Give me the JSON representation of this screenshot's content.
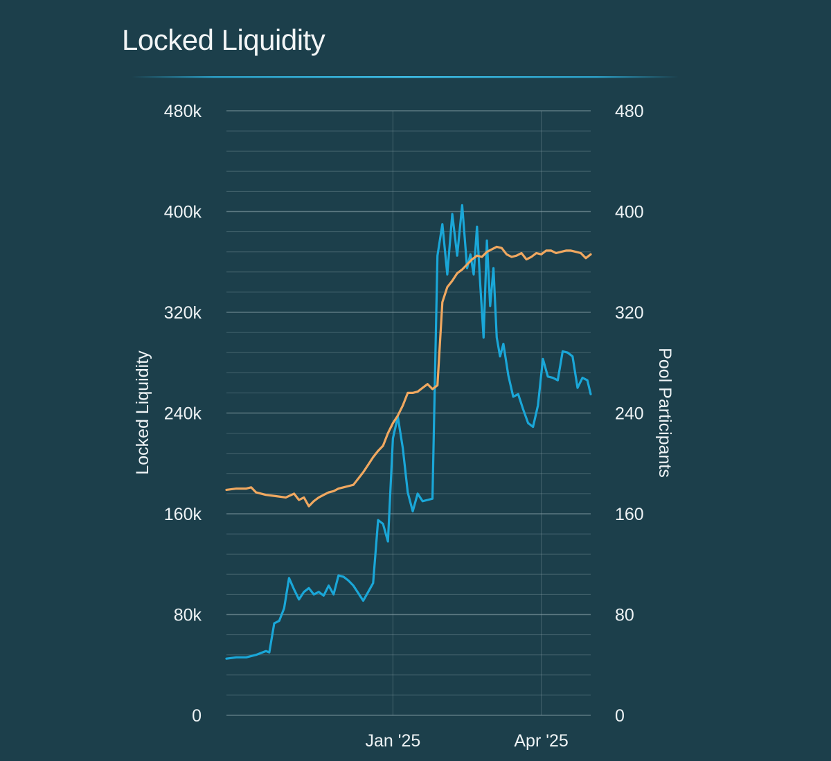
{
  "chart_data": {
    "type": "line",
    "title": "Locked Liquidity",
    "ylabel": "Locked Liquidity",
    "y2label": "Pool Participants",
    "xlim": [
      "2024-09-22",
      "2025-05-01"
    ],
    "ylim": [
      0,
      480000
    ],
    "y2lim": [
      0,
      480
    ],
    "y_ticks": [
      0,
      80000,
      160000,
      240000,
      320000,
      400000,
      480000
    ],
    "y_tick_labels": [
      "0",
      "80k",
      "160k",
      "240k",
      "320k",
      "400k",
      "480k"
    ],
    "y2_ticks": [
      0,
      80,
      160,
      240,
      320,
      400,
      480
    ],
    "y2_tick_labels": [
      "0",
      "80",
      "160",
      "240",
      "320",
      "400",
      "480"
    ],
    "x_ticks": [
      {
        "label": "Jan '25",
        "date": "2025-01-01"
      },
      {
        "label": "Apr '25",
        "date": "2025-04-01"
      }
    ],
    "grid": true,
    "series": [
      {
        "name": "Locked Liquidity",
        "axis": "left",
        "color": "#1aa7d8",
        "x": [
          "2024-09-22",
          "2024-09-28",
          "2024-10-04",
          "2024-10-10",
          "2024-10-16",
          "2024-10-18",
          "2024-10-21",
          "2024-10-24",
          "2024-10-27",
          "2024-10-30",
          "2024-11-02",
          "2024-11-05",
          "2024-11-08",
          "2024-11-11",
          "2024-11-14",
          "2024-11-17",
          "2024-11-20",
          "2024-11-23",
          "2024-11-26",
          "2024-11-29",
          "2024-12-02",
          "2024-12-05",
          "2024-12-08",
          "2024-12-11",
          "2024-12-14",
          "2024-12-17",
          "2024-12-20",
          "2024-12-23",
          "2024-12-26",
          "2024-12-29",
          "2025-01-01",
          "2025-01-04",
          "2025-01-07",
          "2025-01-10",
          "2025-01-13",
          "2025-01-16",
          "2025-01-19",
          "2025-01-22",
          "2025-01-25",
          "2025-01-28",
          "2025-01-31",
          "2025-02-03",
          "2025-02-06",
          "2025-02-09",
          "2025-02-12",
          "2025-02-15",
          "2025-02-17",
          "2025-02-19",
          "2025-02-21",
          "2025-02-23",
          "2025-02-25",
          "2025-02-27",
          "2025-03-01",
          "2025-03-03",
          "2025-03-05",
          "2025-03-07",
          "2025-03-09",
          "2025-03-12",
          "2025-03-15",
          "2025-03-18",
          "2025-03-21",
          "2025-03-24",
          "2025-03-27",
          "2025-03-30",
          "2025-04-02",
          "2025-04-05",
          "2025-04-08",
          "2025-04-11",
          "2025-04-14",
          "2025-04-17",
          "2025-04-20",
          "2025-04-23",
          "2025-04-26",
          "2025-04-29",
          "2025-05-01"
        ],
        "values": [
          45000,
          46000,
          46000,
          48000,
          51000,
          50000,
          73000,
          75000,
          85000,
          109000,
          100000,
          92000,
          98000,
          101000,
          96000,
          98000,
          95000,
          103000,
          96000,
          111000,
          110000,
          107000,
          103000,
          97000,
          91000,
          98000,
          105000,
          155000,
          152000,
          138000,
          220000,
          237000,
          212000,
          177000,
          162000,
          176000,
          170000,
          171000,
          172000,
          365000,
          390000,
          350000,
          398000,
          365000,
          405000,
          355000,
          366000,
          350000,
          388000,
          342000,
          300000,
          377000,
          325000,
          355000,
          300000,
          285000,
          295000,
          270000,
          253000,
          255000,
          243000,
          232000,
          229000,
          246000,
          283000,
          269000,
          268000,
          266000,
          289000,
          288000,
          285000,
          260000,
          268000,
          266000,
          255000
        ]
      },
      {
        "name": "Pool Participants",
        "axis": "right",
        "color": "#f0a860",
        "x": [
          "2024-09-22",
          "2024-09-28",
          "2024-10-04",
          "2024-10-07",
          "2024-10-10",
          "2024-10-16",
          "2024-10-22",
          "2024-10-28",
          "2024-11-02",
          "2024-11-05",
          "2024-11-08",
          "2024-11-11",
          "2024-11-14",
          "2024-11-17",
          "2024-11-20",
          "2024-11-23",
          "2024-11-26",
          "2024-11-29",
          "2024-12-02",
          "2024-12-05",
          "2024-12-08",
          "2024-12-11",
          "2024-12-14",
          "2024-12-17",
          "2024-12-20",
          "2024-12-23",
          "2024-12-26",
          "2024-12-29",
          "2025-01-01",
          "2025-01-04",
          "2025-01-07",
          "2025-01-10",
          "2025-01-13",
          "2025-01-16",
          "2025-01-19",
          "2025-01-22",
          "2025-01-25",
          "2025-01-28",
          "2025-01-31",
          "2025-02-03",
          "2025-02-06",
          "2025-02-09",
          "2025-02-12",
          "2025-02-15",
          "2025-02-18",
          "2025-02-21",
          "2025-02-24",
          "2025-02-27",
          "2025-03-02",
          "2025-03-05",
          "2025-03-08",
          "2025-03-11",
          "2025-03-14",
          "2025-03-17",
          "2025-03-20",
          "2025-03-23",
          "2025-03-26",
          "2025-03-29",
          "2025-04-01",
          "2025-04-04",
          "2025-04-07",
          "2025-04-10",
          "2025-04-13",
          "2025-04-16",
          "2025-04-19",
          "2025-04-22",
          "2025-04-25",
          "2025-04-28",
          "2025-05-01"
        ],
        "values": [
          179,
          180,
          180,
          181,
          177,
          175,
          174,
          173,
          176,
          171,
          173,
          166,
          170,
          173,
          175,
          177,
          178,
          180,
          181,
          182,
          183,
          188,
          193,
          199,
          205,
          210,
          214,
          224,
          232,
          238,
          246,
          256,
          256,
          257,
          260,
          263,
          259,
          262,
          328,
          340,
          345,
          351,
          354,
          358,
          362,
          365,
          364,
          368,
          370,
          372,
          371,
          366,
          364,
          365,
          367,
          362,
          364,
          367,
          366,
          369,
          369,
          367,
          368,
          369,
          369,
          368,
          367,
          363,
          366
        ]
      }
    ]
  }
}
